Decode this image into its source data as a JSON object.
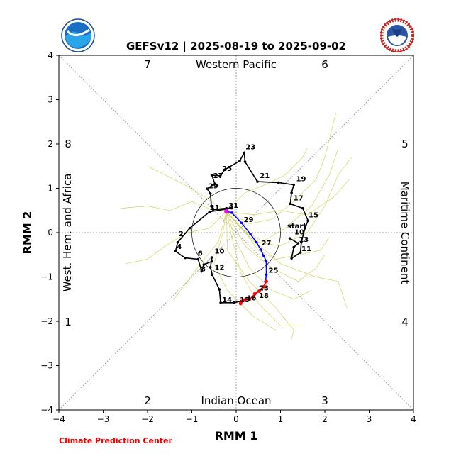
{
  "chart_data": {
    "type": "scatter",
    "title": "GEFSv12 | 2025-08-19 to 2025-09-02",
    "xlabel": "RMM 1",
    "ylabel": "RMM 2",
    "xlim": [
      -4,
      4
    ],
    "ylim": [
      -4,
      4
    ],
    "xticks": [
      "−4",
      "−3",
      "−2",
      "−1",
      "0",
      "1",
      "2",
      "3",
      "4"
    ],
    "yticks": [
      "−4",
      "−3",
      "−2",
      "−1",
      "0",
      "1",
      "2",
      "3",
      "4"
    ],
    "phases": {
      "p1": "1",
      "p2": "2",
      "p3": "3",
      "p4": "4",
      "p5": "5",
      "p6": "6",
      "p7": "7",
      "p8": "8"
    },
    "regions": {
      "top": "Western Pacific",
      "bottom": "Indian Ocean",
      "left": "West. Hem. and Africa",
      "right": "Maritime Continent"
    },
    "start_label": "start",
    "colors": {
      "observed": "#000000",
      "forecast_mean": "#0000ff",
      "forecast_end": "#ff0000",
      "ensemble": "#cccc44",
      "end_marker": "#ff00ff"
    },
    "observed": {
      "points": [
        [
          1.21,
          -0.13
        ],
        [
          1.4,
          -0.24
        ],
        [
          1.3,
          -0.33
        ],
        [
          1.25,
          -0.58
        ],
        [
          1.45,
          -0.45
        ],
        [
          1.47,
          -0.22
        ],
        [
          1.55,
          0.1
        ],
        [
          1.62,
          0.27
        ],
        [
          1.5,
          0.55
        ],
        [
          1.22,
          0.65
        ],
        [
          1.25,
          0.9
        ],
        [
          1.3,
          1.08
        ],
        [
          0.95,
          1.13
        ],
        [
          0.48,
          1.15
        ],
        [
          0.2,
          1.6
        ],
        [
          0.18,
          1.8
        ],
        [
          0.08,
          1.62
        ],
        [
          -0.26,
          1.42
        ],
        [
          -0.36,
          1.28
        ],
        [
          -0.55,
          1.3
        ],
        [
          -0.48,
          1.1
        ],
        [
          -0.66,
          0.99
        ],
        [
          -0.58,
          0.88
        ],
        [
          -0.56,
          0.6
        ],
        [
          -0.52,
          0.52
        ],
        [
          -0.22,
          0.55
        ],
        [
          -0.1,
          0.55
        ],
        [
          -0.6,
          0.47
        ],
        [
          -1.05,
          0.1
        ],
        [
          -1.32,
          -0.22
        ],
        [
          -1.37,
          -0.42
        ],
        [
          -1.15,
          -0.57
        ],
        [
          -0.86,
          -0.6
        ],
        [
          -0.78,
          -0.87
        ],
        [
          -0.73,
          -0.72
        ],
        [
          -0.55,
          -0.65
        ],
        [
          -0.55,
          -0.56
        ],
        [
          -0.58,
          -0.78
        ],
        [
          -0.54,
          -0.95
        ],
        [
          -0.38,
          -1.28
        ],
        [
          -0.35,
          -1.58
        ],
        [
          -0.05,
          -1.58
        ],
        [
          0.3,
          -1.5
        ]
      ],
      "labels": [
        {
          "text": "10",
          "x": 1.28,
          "y": -0.07
        },
        {
          "text": "11",
          "x": 1.44,
          "y": -0.45
        },
        {
          "text": "13",
          "x": 1.38,
          "y": -0.24
        },
        {
          "text": "15",
          "x": 1.6,
          "y": 0.31
        },
        {
          "text": "17",
          "x": 1.26,
          "y": 0.7
        },
        {
          "text": "19",
          "x": 1.32,
          "y": 1.13
        },
        {
          "text": "21",
          "x": 0.5,
          "y": 1.2
        },
        {
          "text": "23",
          "x": 0.18,
          "y": 1.85
        },
        {
          "text": "25",
          "x": -0.35,
          "y": 1.36
        },
        {
          "text": "27",
          "x": -0.55,
          "y": 1.2
        },
        {
          "text": "29",
          "x": -0.66,
          "y": 0.97
        },
        {
          "text": "31",
          "x": -0.63,
          "y": 0.48
        },
        {
          "text": "2",
          "x": -1.33,
          "y": -0.11
        },
        {
          "text": "4",
          "x": -1.37,
          "y": -0.4
        },
        {
          "text": "6",
          "x": -0.9,
          "y": -0.55
        },
        {
          "text": "8",
          "x": -0.83,
          "y": -0.9
        },
        {
          "text": "10",
          "x": -0.52,
          "y": -0.5
        },
        {
          "text": "12",
          "x": -0.52,
          "y": -0.87
        },
        {
          "text": "14",
          "x": -0.35,
          "y": -1.6
        }
      ]
    },
    "forecast_mean": {
      "points": [
        [
          -0.22,
          0.48
        ],
        [
          -0.1,
          0.45
        ],
        [
          0.12,
          0.22
        ],
        [
          0.32,
          -0.03
        ],
        [
          0.46,
          -0.22
        ],
        [
          0.55,
          -0.38
        ],
        [
          0.62,
          -0.52
        ],
        [
          0.68,
          -0.65
        ],
        [
          0.68,
          -0.95
        ],
        [
          0.66,
          -1.1
        ]
      ],
      "labels": [
        {
          "text": "31",
          "x": -0.22,
          "y": 0.56
        },
        {
          "text": "29",
          "x": 0.12,
          "y": 0.24
        },
        {
          "text": "27",
          "x": 0.52,
          "y": -0.29
        },
        {
          "text": "25",
          "x": 0.68,
          "y": -0.9
        }
      ]
    },
    "forecast_end": {
      "points": [
        [
          0.68,
          -1.1
        ],
        [
          0.62,
          -1.22
        ],
        [
          0.52,
          -1.32
        ],
        [
          0.42,
          -1.38
        ],
        [
          0.38,
          -1.45
        ],
        [
          0.28,
          -1.5
        ],
        [
          0.18,
          -1.52
        ],
        [
          0.12,
          -1.55
        ],
        [
          0.1,
          -1.6
        ]
      ],
      "labels": [
        {
          "text": "23",
          "x": 0.48,
          "y": -1.3
        },
        {
          "text": "18",
          "x": 0.48,
          "y": -1.47
        },
        {
          "text": "16",
          "x": 0.2,
          "y": -1.53
        },
        {
          "text": "15",
          "x": 0.05,
          "y": -1.57
        }
      ]
    },
    "ensemble": [
      [
        [
          -0.22,
          0.48
        ],
        [
          0.2,
          0.0
        ],
        [
          0.5,
          -0.4
        ],
        [
          0.9,
          -0.6
        ],
        [
          1.4,
          -0.5
        ],
        [
          1.9,
          -0.4
        ],
        [
          2.1,
          -0.1
        ]
      ],
      [
        [
          -0.22,
          0.48
        ],
        [
          0.1,
          0.1
        ],
        [
          0.6,
          -0.2
        ],
        [
          1.1,
          0.1
        ],
        [
          1.7,
          0.6
        ],
        [
          2.1,
          1.3
        ],
        [
          2.3,
          1.9
        ]
      ],
      [
        [
          -0.22,
          0.48
        ],
        [
          0.3,
          0.2
        ],
        [
          0.8,
          0.3
        ],
        [
          1.3,
          0.7
        ],
        [
          1.8,
          1.2
        ],
        [
          2.0,
          1.7
        ],
        [
          2.25,
          2.7
        ]
      ],
      [
        [
          -0.22,
          0.48
        ],
        [
          0.4,
          -0.2
        ],
        [
          1.0,
          -0.3
        ],
        [
          1.6,
          0.0
        ],
        [
          2.0,
          0.6
        ],
        [
          2.3,
          1.3
        ],
        [
          2.6,
          1.7
        ]
      ],
      [
        [
          -0.22,
          0.48
        ],
        [
          0.2,
          -0.3
        ],
        [
          0.8,
          -0.8
        ],
        [
          1.4,
          -1.1
        ],
        [
          1.8,
          -0.8
        ],
        [
          2.0,
          -0.5
        ]
      ],
      [
        [
          -0.22,
          0.48
        ],
        [
          0.0,
          -0.2
        ],
        [
          0.3,
          -0.8
        ],
        [
          0.8,
          -1.3
        ],
        [
          1.3,
          -1.5
        ],
        [
          1.7,
          -1.3
        ]
      ],
      [
        [
          -0.22,
          0.48
        ],
        [
          -0.3,
          0.0
        ],
        [
          -0.5,
          -0.7
        ],
        [
          -0.2,
          -1.3
        ],
        [
          0.4,
          -1.9
        ],
        [
          0.9,
          -2.2
        ]
      ],
      [
        [
          -0.22,
          0.48
        ],
        [
          -0.6,
          0.1
        ],
        [
          -1.1,
          0.0
        ],
        [
          -1.6,
          -0.3
        ],
        [
          -2.0,
          -0.6
        ],
        [
          -2.5,
          -0.7
        ]
      ],
      [
        [
          -0.22,
          0.48
        ],
        [
          -0.5,
          0.5
        ],
        [
          -1.0,
          0.7
        ],
        [
          -1.5,
          0.5
        ],
        [
          -2.0,
          0.6
        ],
        [
          -2.6,
          0.55
        ]
      ],
      [
        [
          -0.22,
          0.48
        ],
        [
          -0.7,
          0.8
        ],
        [
          -1.2,
          1.1
        ],
        [
          -1.6,
          1.3
        ],
        [
          -2.0,
          1.5
        ]
      ],
      [
        [
          -0.22,
          0.48
        ],
        [
          0.2,
          0.9
        ],
        [
          0.7,
          1.1
        ],
        [
          1.1,
          1.3
        ],
        [
          1.5,
          1.7
        ],
        [
          1.6,
          1.9
        ]
      ],
      [
        [
          -0.22,
          0.48
        ],
        [
          -0.1,
          -0.1
        ],
        [
          0.1,
          -0.9
        ],
        [
          0.5,
          -1.6
        ],
        [
          1.0,
          -2.1
        ],
        [
          1.5,
          -2.1
        ]
      ],
      [
        [
          -0.22,
          0.48
        ],
        [
          -0.4,
          -0.2
        ],
        [
          -0.8,
          -0.7
        ],
        [
          -1.1,
          -1.1
        ],
        [
          -1.4,
          -1.5
        ]
      ],
      [
        [
          -0.22,
          0.48
        ],
        [
          0.3,
          -0.1
        ],
        [
          1.0,
          -0.7
        ],
        [
          1.8,
          -1.0
        ],
        [
          2.3,
          -1.1
        ],
        [
          2.5,
          -1.7
        ]
      ],
      [
        [
          -0.22,
          0.48
        ],
        [
          0.4,
          0.4
        ],
        [
          1.0,
          0.5
        ],
        [
          1.6,
          0.4
        ],
        [
          2.2,
          0.8
        ],
        [
          2.55,
          1.2
        ]
      ],
      [
        [
          -0.22,
          0.48
        ],
        [
          -0.2,
          -0.4
        ],
        [
          0.3,
          -1.1
        ],
        [
          0.9,
          -1.7
        ],
        [
          1.3,
          -2.2
        ],
        [
          1.25,
          -2.4
        ]
      ]
    ]
  }
}
